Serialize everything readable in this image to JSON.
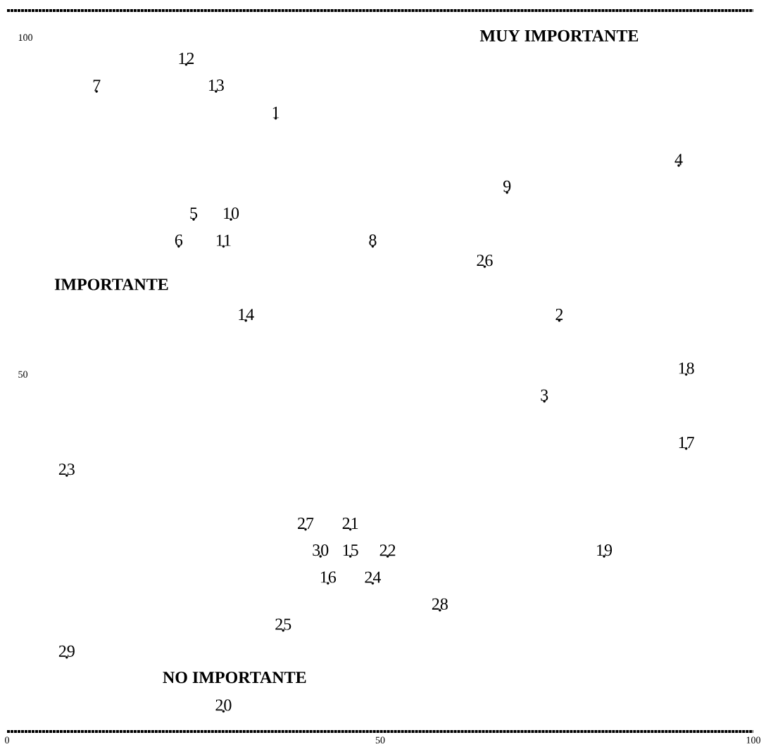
{
  "chart_data": {
    "type": "scatter",
    "grid": false,
    "series": [
      {
        "name": "1",
        "color": "#000000",
        "x": [
          36
        ],
        "values": [
          88
        ]
      },
      {
        "name": "2",
        "color": "#000000",
        "x": [
          74
        ],
        "values": [
          58
        ]
      },
      {
        "name": "3",
        "color": "#000000",
        "x": [
          72
        ],
        "values": [
          46
        ]
      },
      {
        "name": "4",
        "color": "#000000",
        "x": [
          90
        ],
        "values": [
          81
        ]
      },
      {
        "name": "5",
        "color": "#000000",
        "x": [
          25
        ],
        "values": [
          73
        ]
      },
      {
        "name": "6",
        "color": "#000000",
        "x": [
          23
        ],
        "values": [
          69
        ]
      },
      {
        "name": "7",
        "color": "#000000",
        "x": [
          12
        ],
        "values": [
          92
        ]
      },
      {
        "name": "8",
        "color": "#000000",
        "x": [
          49
        ],
        "values": [
          69
        ]
      },
      {
        "name": "9",
        "color": "#000000",
        "x": [
          67
        ],
        "values": [
          77
        ]
      },
      {
        "name": "10",
        "color": "#000000",
        "x": [
          30
        ],
        "values": [
          73
        ]
      },
      {
        "name": "11",
        "color": "#000000",
        "x": [
          29
        ],
        "values": [
          69
        ]
      },
      {
        "name": "12",
        "color": "#000000",
        "x": [
          24
        ],
        "values": [
          96
        ]
      },
      {
        "name": "13",
        "color": "#000000",
        "x": [
          28
        ],
        "values": [
          92
        ]
      },
      {
        "name": "14",
        "color": "#000000",
        "x": [
          32
        ],
        "values": [
          58
        ]
      },
      {
        "name": "15",
        "color": "#000000",
        "x": [
          46
        ],
        "values": [
          23
        ]
      },
      {
        "name": "16",
        "color": "#000000",
        "x": [
          43
        ],
        "values": [
          19
        ]
      },
      {
        "name": "17",
        "color": "#000000",
        "x": [
          91
        ],
        "values": [
          39
        ]
      },
      {
        "name": "18",
        "color": "#000000",
        "x": [
          91
        ],
        "values": [
          50
        ]
      },
      {
        "name": "19",
        "color": "#000000",
        "x": [
          80
        ],
        "values": [
          23
        ]
      },
      {
        "name": "20",
        "color": "#000000",
        "x": [
          29
        ],
        "values": [
          0
        ]
      },
      {
        "name": "21",
        "color": "#000000",
        "x": [
          46
        ],
        "values": [
          27
        ]
      },
      {
        "name": "22",
        "color": "#000000",
        "x": [
          51
        ],
        "values": [
          23
        ]
      },
      {
        "name": "23",
        "color": "#000000",
        "x": [
          8
        ],
        "values": [
          35
        ]
      },
      {
        "name": "24",
        "color": "#000000",
        "x": [
          49
        ],
        "values": [
          19
        ]
      },
      {
        "name": "25",
        "color": "#000000",
        "x": [
          37
        ],
        "values": [
          12
        ]
      },
      {
        "name": "26",
        "color": "#000000",
        "x": [
          64
        ],
        "values": [
          66
        ]
      },
      {
        "name": "27",
        "color": "#000000",
        "x": [
          40
        ],
        "values": [
          27
        ]
      },
      {
        "name": "28",
        "color": "#000000",
        "x": [
          58
        ],
        "values": [
          15
        ]
      },
      {
        "name": "29",
        "color": "#000000",
        "x": [
          8
        ],
        "values": [
          8
        ]
      },
      {
        "name": "30",
        "color": "#000000",
        "x": [
          42
        ],
        "values": [
          23
        ]
      }
    ],
    "xlim": [
      0,
      100
    ],
    "ylim": [
      -3,
      104
    ],
    "xticks": [
      0,
      50,
      100
    ],
    "yticks": [
      50,
      100
    ],
    "annotations": [
      "MUY IMPORTANTE",
      "IMPORTANTE",
      "NO IMPORTANTE"
    ]
  }
}
